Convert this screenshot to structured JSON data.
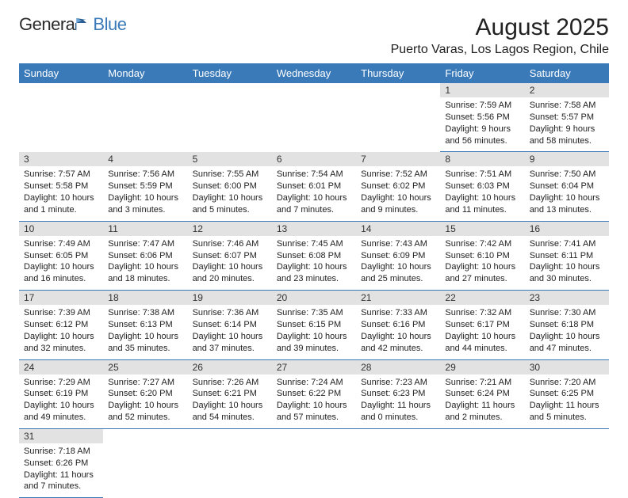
{
  "brand": {
    "part1": "Genera",
    "part2": "Blue"
  },
  "title": "August 2025",
  "location": "Puerto Varas, Los Lagos Region, Chile",
  "colors": {
    "header_bg": "#3a7ab8",
    "header_fg": "#ffffff",
    "daynum_bg": "#e2e2e2",
    "rule": "#3a7ab8",
    "text": "#222222"
  },
  "days_of_week": [
    "Sunday",
    "Monday",
    "Tuesday",
    "Wednesday",
    "Thursday",
    "Friday",
    "Saturday"
  ],
  "weeks": [
    [
      null,
      null,
      null,
      null,
      null,
      {
        "n": "1",
        "sunrise": "Sunrise: 7:59 AM",
        "sunset": "Sunset: 5:56 PM",
        "day": "Daylight: 9 hours and 56 minutes."
      },
      {
        "n": "2",
        "sunrise": "Sunrise: 7:58 AM",
        "sunset": "Sunset: 5:57 PM",
        "day": "Daylight: 9 hours and 58 minutes."
      }
    ],
    [
      {
        "n": "3",
        "sunrise": "Sunrise: 7:57 AM",
        "sunset": "Sunset: 5:58 PM",
        "day": "Daylight: 10 hours and 1 minute."
      },
      {
        "n": "4",
        "sunrise": "Sunrise: 7:56 AM",
        "sunset": "Sunset: 5:59 PM",
        "day": "Daylight: 10 hours and 3 minutes."
      },
      {
        "n": "5",
        "sunrise": "Sunrise: 7:55 AM",
        "sunset": "Sunset: 6:00 PM",
        "day": "Daylight: 10 hours and 5 minutes."
      },
      {
        "n": "6",
        "sunrise": "Sunrise: 7:54 AM",
        "sunset": "Sunset: 6:01 PM",
        "day": "Daylight: 10 hours and 7 minutes."
      },
      {
        "n": "7",
        "sunrise": "Sunrise: 7:52 AM",
        "sunset": "Sunset: 6:02 PM",
        "day": "Daylight: 10 hours and 9 minutes."
      },
      {
        "n": "8",
        "sunrise": "Sunrise: 7:51 AM",
        "sunset": "Sunset: 6:03 PM",
        "day": "Daylight: 10 hours and 11 minutes."
      },
      {
        "n": "9",
        "sunrise": "Sunrise: 7:50 AM",
        "sunset": "Sunset: 6:04 PM",
        "day": "Daylight: 10 hours and 13 minutes."
      }
    ],
    [
      {
        "n": "10",
        "sunrise": "Sunrise: 7:49 AM",
        "sunset": "Sunset: 6:05 PM",
        "day": "Daylight: 10 hours and 16 minutes."
      },
      {
        "n": "11",
        "sunrise": "Sunrise: 7:47 AM",
        "sunset": "Sunset: 6:06 PM",
        "day": "Daylight: 10 hours and 18 minutes."
      },
      {
        "n": "12",
        "sunrise": "Sunrise: 7:46 AM",
        "sunset": "Sunset: 6:07 PM",
        "day": "Daylight: 10 hours and 20 minutes."
      },
      {
        "n": "13",
        "sunrise": "Sunrise: 7:45 AM",
        "sunset": "Sunset: 6:08 PM",
        "day": "Daylight: 10 hours and 23 minutes."
      },
      {
        "n": "14",
        "sunrise": "Sunrise: 7:43 AM",
        "sunset": "Sunset: 6:09 PM",
        "day": "Daylight: 10 hours and 25 minutes."
      },
      {
        "n": "15",
        "sunrise": "Sunrise: 7:42 AM",
        "sunset": "Sunset: 6:10 PM",
        "day": "Daylight: 10 hours and 27 minutes."
      },
      {
        "n": "16",
        "sunrise": "Sunrise: 7:41 AM",
        "sunset": "Sunset: 6:11 PM",
        "day": "Daylight: 10 hours and 30 minutes."
      }
    ],
    [
      {
        "n": "17",
        "sunrise": "Sunrise: 7:39 AM",
        "sunset": "Sunset: 6:12 PM",
        "day": "Daylight: 10 hours and 32 minutes."
      },
      {
        "n": "18",
        "sunrise": "Sunrise: 7:38 AM",
        "sunset": "Sunset: 6:13 PM",
        "day": "Daylight: 10 hours and 35 minutes."
      },
      {
        "n": "19",
        "sunrise": "Sunrise: 7:36 AM",
        "sunset": "Sunset: 6:14 PM",
        "day": "Daylight: 10 hours and 37 minutes."
      },
      {
        "n": "20",
        "sunrise": "Sunrise: 7:35 AM",
        "sunset": "Sunset: 6:15 PM",
        "day": "Daylight: 10 hours and 39 minutes."
      },
      {
        "n": "21",
        "sunrise": "Sunrise: 7:33 AM",
        "sunset": "Sunset: 6:16 PM",
        "day": "Daylight: 10 hours and 42 minutes."
      },
      {
        "n": "22",
        "sunrise": "Sunrise: 7:32 AM",
        "sunset": "Sunset: 6:17 PM",
        "day": "Daylight: 10 hours and 44 minutes."
      },
      {
        "n": "23",
        "sunrise": "Sunrise: 7:30 AM",
        "sunset": "Sunset: 6:18 PM",
        "day": "Daylight: 10 hours and 47 minutes."
      }
    ],
    [
      {
        "n": "24",
        "sunrise": "Sunrise: 7:29 AM",
        "sunset": "Sunset: 6:19 PM",
        "day": "Daylight: 10 hours and 49 minutes."
      },
      {
        "n": "25",
        "sunrise": "Sunrise: 7:27 AM",
        "sunset": "Sunset: 6:20 PM",
        "day": "Daylight: 10 hours and 52 minutes."
      },
      {
        "n": "26",
        "sunrise": "Sunrise: 7:26 AM",
        "sunset": "Sunset: 6:21 PM",
        "day": "Daylight: 10 hours and 54 minutes."
      },
      {
        "n": "27",
        "sunrise": "Sunrise: 7:24 AM",
        "sunset": "Sunset: 6:22 PM",
        "day": "Daylight: 10 hours and 57 minutes."
      },
      {
        "n": "28",
        "sunrise": "Sunrise: 7:23 AM",
        "sunset": "Sunset: 6:23 PM",
        "day": "Daylight: 11 hours and 0 minutes."
      },
      {
        "n": "29",
        "sunrise": "Sunrise: 7:21 AM",
        "sunset": "Sunset: 6:24 PM",
        "day": "Daylight: 11 hours and 2 minutes."
      },
      {
        "n": "30",
        "sunrise": "Sunrise: 7:20 AM",
        "sunset": "Sunset: 6:25 PM",
        "day": "Daylight: 11 hours and 5 minutes."
      }
    ],
    [
      {
        "n": "31",
        "sunrise": "Sunrise: 7:18 AM",
        "sunset": "Sunset: 6:26 PM",
        "day": "Daylight: 11 hours and 7 minutes."
      },
      null,
      null,
      null,
      null,
      null,
      null
    ]
  ]
}
